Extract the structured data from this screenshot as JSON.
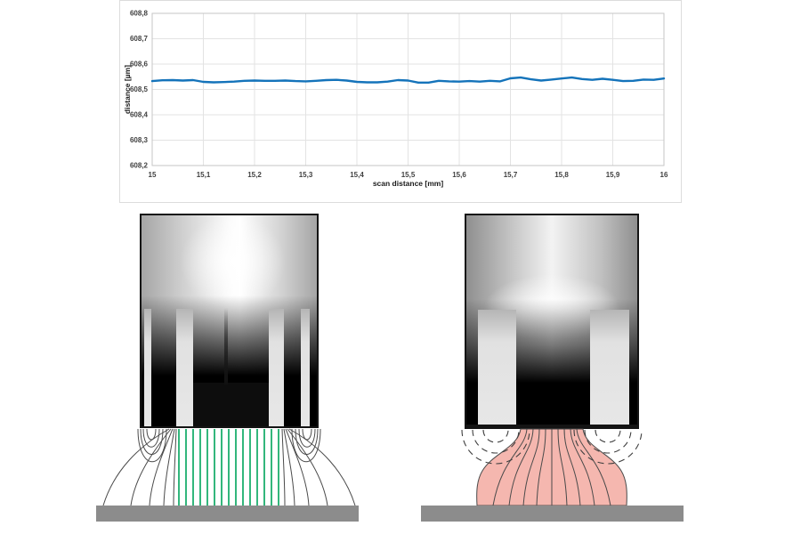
{
  "chart_data": {
    "type": "line",
    "title": "",
    "xlabel": "scan distance [mm]",
    "ylabel": "distance [µm]",
    "xlim": [
      15,
      16
    ],
    "ylim": [
      608.2,
      608.8
    ],
    "grid": true,
    "legend": false,
    "x_ticks": [
      15,
      15.1,
      15.2,
      15.3,
      15.4,
      15.5,
      15.6,
      15.7,
      15.8,
      15.9,
      16
    ],
    "x_tick_labels": [
      "15",
      "15,1",
      "15,2",
      "15,3",
      "15,4",
      "15,5",
      "15,6",
      "15,7",
      "15,8",
      "15,9",
      "16"
    ],
    "y_ticks": [
      608.2,
      608.3,
      608.4,
      608.5,
      608.6,
      608.7,
      608.8
    ],
    "y_tick_labels": [
      "608,2",
      "608,3",
      "608,4",
      "608,5",
      "608,6",
      "608,7",
      "608,8"
    ],
    "series": [
      {
        "name": "distance",
        "color": "#1473ba",
        "x": [
          15.0,
          15.02,
          15.04,
          15.06,
          15.08,
          15.1,
          15.12,
          15.14,
          15.16,
          15.18,
          15.2,
          15.22,
          15.24,
          15.26,
          15.28,
          15.3,
          15.32,
          15.34,
          15.36,
          15.38,
          15.4,
          15.42,
          15.44,
          15.46,
          15.48,
          15.5,
          15.52,
          15.54,
          15.56,
          15.58,
          15.6,
          15.62,
          15.64,
          15.66,
          15.68,
          15.7,
          15.72,
          15.74,
          15.76,
          15.78,
          15.8,
          15.82,
          15.84,
          15.86,
          15.88,
          15.9,
          15.92,
          15.94,
          15.96,
          15.98,
          16.0
        ],
        "y": [
          608.533,
          608.536,
          608.537,
          608.535,
          608.537,
          608.53,
          608.528,
          608.529,
          608.531,
          608.534,
          608.535,
          608.534,
          608.534,
          608.535,
          608.533,
          608.532,
          608.534,
          608.537,
          608.538,
          608.535,
          608.53,
          608.528,
          608.528,
          608.531,
          608.537,
          608.535,
          608.527,
          608.527,
          608.534,
          608.532,
          608.531,
          608.533,
          608.531,
          608.534,
          608.532,
          608.544,
          608.547,
          608.54,
          608.535,
          608.539,
          608.543,
          608.547,
          608.541,
          608.538,
          608.542,
          608.538,
          608.533,
          608.534,
          608.539,
          608.538,
          608.543
        ]
      }
    ]
  },
  "colors": {
    "line_blue": "#1473ba",
    "field_green": "#00a55c",
    "field_pink": "#f5b7af",
    "field_line_gray": "#4a4a4a",
    "ground_gray": "#8c8c8c"
  },
  "figures": {
    "left_green_field_line_count": 15,
    "left_fringe_loop_count_per_side": 4,
    "right_dashed_arc_count_per_side": 3
  }
}
